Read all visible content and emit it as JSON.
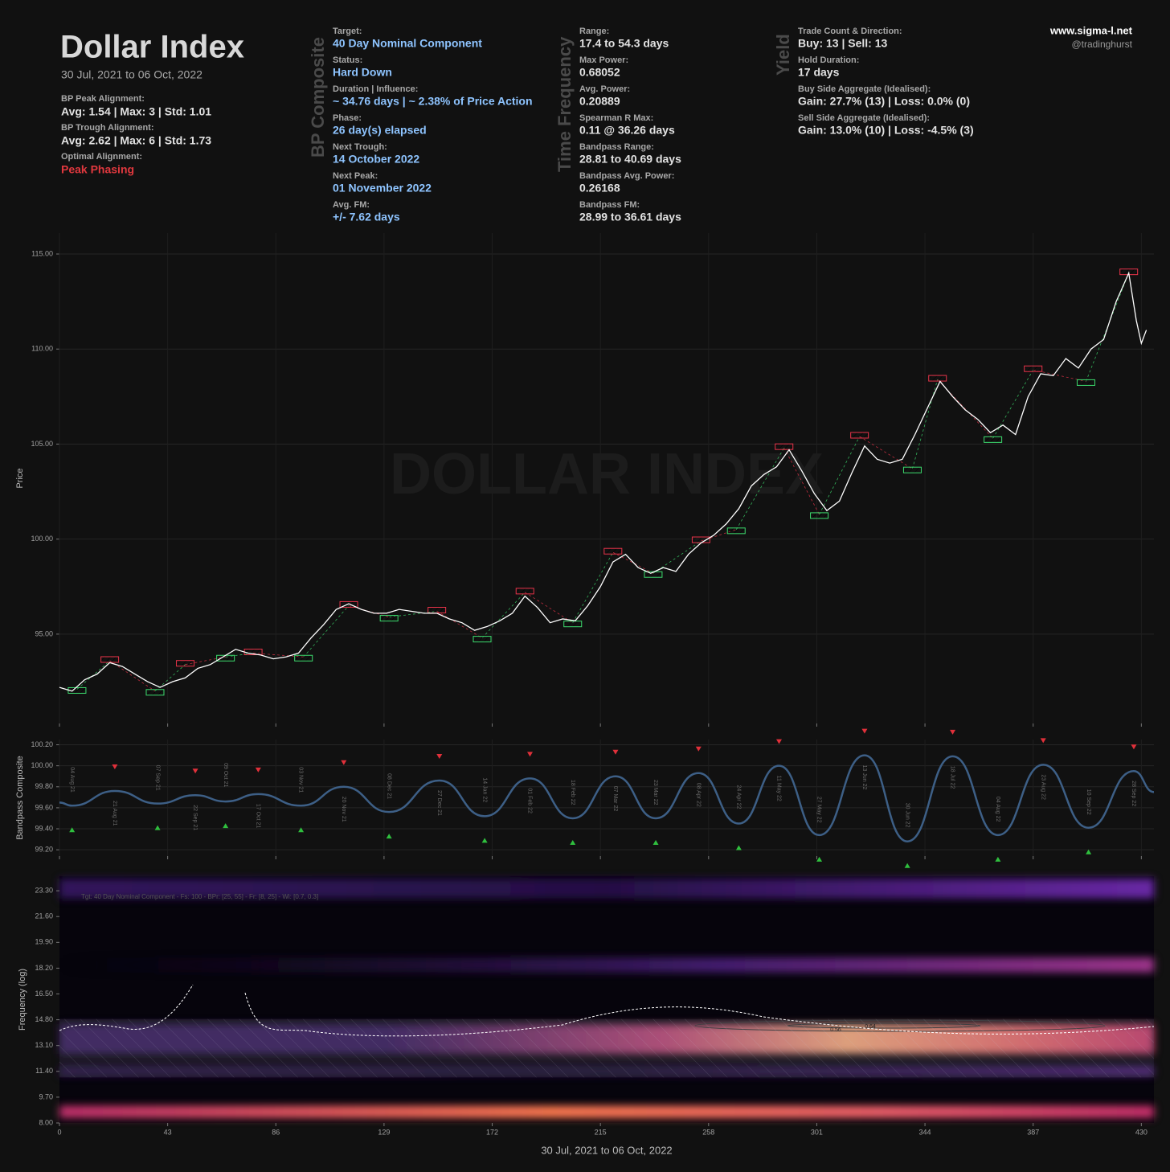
{
  "header": {
    "title": "Dollar Index",
    "subtitle": "30 Jul, 2021 to 06 Oct, 2022",
    "alignment": [
      {
        "label": "BP Peak Alignment:",
        "value": "Avg: 1.54 | Max: 3 | Std: 1.01"
      },
      {
        "label": "BP Trough Alignment:",
        "value": "Avg: 2.62 | Max: 6 | Std: 1.73"
      },
      {
        "label": "Optimal Alignment:",
        "value": "Peak Phasing"
      }
    ],
    "sections": [
      {
        "heading": "BP Composite",
        "items": [
          {
            "label": "Target:",
            "value": "40 Day Nominal Component"
          },
          {
            "label": "Status:",
            "value": "Hard Down"
          },
          {
            "label": "Duration | Influence:",
            "value": "~ 34.76 days | ~ 2.38% of Price Action"
          },
          {
            "label": "Phase:",
            "value": "26 day(s) elapsed"
          },
          {
            "label": "Next Trough:",
            "value": "14 October 2022"
          },
          {
            "label": "Next Peak:",
            "value": "01 November 2022"
          },
          {
            "label": "Avg. FM:",
            "value": "+/- 7.62 days"
          }
        ]
      },
      {
        "heading": "Time Frequency",
        "items": [
          {
            "label": "Range:",
            "value": "17.4 to 54.3 days"
          },
          {
            "label": "Max Power:",
            "value": "0.68052"
          },
          {
            "label": "Avg. Power:",
            "value": "0.20889"
          },
          {
            "label": "Spearman R Max:",
            "value": "0.11 @ 36.26 days"
          },
          {
            "label": "Bandpass Range:",
            "value": "28.81 to 40.69 days"
          },
          {
            "label": "Bandpass Avg. Power:",
            "value": "0.26168"
          },
          {
            "label": "Bandpass FM:",
            "value": "28.99 to 36.61 days"
          }
        ]
      },
      {
        "heading": "Yield",
        "items": [
          {
            "label": "Trade Count & Direction:",
            "value": "Buy: 13 | Sell: 13"
          },
          {
            "label": "Hold Duration:",
            "value": "17 days"
          },
          {
            "label": "Buy Side Aggregate (Idealised):",
            "value": "Gain: 27.7% (13) | Loss: 0.0% (0)"
          },
          {
            "label": "Sell Side Aggregate (Idealised):",
            "value": "Gain: 13.0% (10) | Loss: -4.5% (3)"
          }
        ]
      }
    ],
    "site": "www.sigma-l.net",
    "handle": "@tradinghurst"
  },
  "chart_data": [
    {
      "type": "line",
      "ylabel": "Price",
      "watermark": "DOLLAR INDEX",
      "color": "#ffffff",
      "x": [
        0,
        5,
        10,
        15,
        20,
        25,
        30,
        35,
        40,
        45,
        50,
        55,
        60,
        65,
        70,
        75,
        80,
        85,
        90,
        95,
        100,
        105,
        110,
        115,
        120,
        125,
        130,
        135,
        140,
        145,
        150,
        155,
        160,
        165,
        170,
        175,
        180,
        185,
        190,
        195,
        200,
        205,
        210,
        215,
        220,
        225,
        230,
        235,
        240,
        245,
        250,
        255,
        260,
        265,
        270,
        275,
        280,
        285,
        290,
        295,
        300,
        305,
        310,
        315,
        320,
        325,
        330,
        335,
        340,
        345,
        350,
        355,
        360,
        365,
        370,
        375,
        380,
        385,
        390,
        395,
        400,
        405,
        410,
        415,
        420,
        425,
        428,
        430,
        432
      ],
      "values": [
        92.2,
        92.0,
        92.6,
        92.9,
        93.5,
        93.3,
        92.9,
        92.5,
        92.2,
        92.5,
        92.7,
        93.2,
        93.4,
        93.8,
        94.2,
        94.0,
        93.9,
        93.7,
        93.8,
        94.0,
        94.8,
        95.5,
        96.3,
        96.6,
        96.3,
        96.1,
        96.1,
        96.3,
        96.2,
        96.1,
        96.1,
        95.8,
        95.6,
        95.2,
        95.4,
        95.7,
        96.1,
        97.0,
        96.4,
        95.6,
        95.8,
        95.7,
        96.5,
        97.5,
        98.8,
        99.2,
        98.5,
        98.2,
        98.5,
        98.3,
        99.2,
        99.8,
        100.2,
        100.8,
        101.6,
        102.8,
        103.4,
        103.8,
        104.7,
        103.6,
        102.4,
        101.5,
        102.0,
        103.5,
        104.9,
        104.2,
        104.0,
        104.2,
        105.5,
        106.9,
        108.3,
        107.5,
        106.8,
        106.3,
        105.6,
        106.0,
        105.5,
        107.5,
        108.7,
        108.6,
        109.5,
        109.0,
        110.0,
        110.5,
        112.5,
        114.0,
        111.5,
        110.3,
        111.0
      ],
      "peaks": {
        "color": "#e8344a",
        "x": [
          20,
          50,
          77,
          115,
          150,
          185,
          220,
          255,
          288,
          318,
          349,
          387,
          425
        ],
        "values": [
          93.6,
          93.4,
          94.0,
          96.5,
          96.2,
          97.2,
          99.3,
          99.9,
          104.8,
          105.4,
          108.4,
          108.9,
          114.0
        ]
      },
      "troughs": {
        "color": "#3ddc6e",
        "x": [
          7,
          38,
          66,
          97,
          131,
          168,
          204,
          236,
          269,
          302,
          339,
          371,
          408
        ],
        "values": [
          92.1,
          92.0,
          93.8,
          93.8,
          95.9,
          94.8,
          95.6,
          98.2,
          100.5,
          101.3,
          103.7,
          105.3,
          108.3
        ]
      },
      "xlim": [
        0,
        435
      ],
      "ylim": [
        90.3,
        116.1
      ],
      "yticks": [
        {
          "value": 95,
          "label": "95.00"
        },
        {
          "value": 100,
          "label": "100.00"
        },
        {
          "value": 105,
          "label": "105.00"
        },
        {
          "value": 110,
          "label": "110.00"
        },
        {
          "value": 115,
          "label": "115.00"
        }
      ],
      "grid": true
    },
    {
      "type": "line",
      "interpolation": "smooth",
      "ylabel": "Bandpass Composite",
      "color": "#3d5f86",
      "peak_color": "#e0303a",
      "trough_color": "#2fbf3e",
      "x": [
        0,
        5,
        22,
        39,
        54,
        66,
        79,
        96,
        113,
        131,
        151,
        169,
        187,
        204,
        221,
        237,
        254,
        270,
        286,
        302,
        320,
        337,
        355,
        373,
        391,
        409,
        427,
        435
      ],
      "values": [
        99.65,
        99.62,
        99.76,
        99.64,
        99.72,
        99.66,
        99.73,
        99.62,
        99.8,
        99.56,
        99.86,
        99.52,
        99.88,
        99.5,
        99.9,
        99.5,
        99.93,
        99.45,
        100.0,
        99.34,
        100.1,
        99.28,
        100.09,
        99.34,
        100.01,
        99.41,
        99.95,
        99.75
      ],
      "point_labels": [
        null,
        "04 Aug 21",
        "21 Aug 21",
        "07 Sep 21",
        "22 Sep 21",
        "09 Oct 21",
        "17 Oct 21",
        "03 Nov 21",
        "20 Nov 21",
        "08 Dec 21",
        "27 Dec 21",
        "14 Jan 22",
        "01 Feb 22",
        "18 Feb 22",
        "07 Mar 22",
        "23 Mar 22",
        "08 Apr 22",
        "24 Apr 22",
        "11 May 22",
        "27 May 22",
        "13 Jun 22",
        "30 Jun 22",
        "18 Jul 22",
        "04 Aug 22",
        "23 Aug 22",
        "10 Sep 22",
        "28 Sep 22",
        null
      ],
      "xlim": [
        0,
        435
      ],
      "ylim": [
        99.14,
        100.25
      ],
      "yticks": [
        {
          "value": 99.2,
          "label": "99.20"
        },
        {
          "value": 99.4,
          "label": "99.40"
        },
        {
          "value": 99.6,
          "label": "99.60"
        },
        {
          "value": 99.8,
          "label": "99.80"
        },
        {
          "value": 100,
          "label": "100.00"
        },
        {
          "value": 100.2,
          "label": "100.20"
        }
      ],
      "grid": true
    },
    {
      "type": "heatmap",
      "ylabel": "Frequency (log)",
      "xlabel": "30 Jul, 2021 to 06 Oct, 2022",
      "annotation": "Tgt: 40 Day Nominal Component - Fs: 100 - BPr: [25, 55] - Fr: [8, 25] - Wi: [0.7, 0.3]",
      "contour_labels": [
        "0.56",
        "0.64"
      ],
      "highlight_range": [
        11.0,
        14.85
      ],
      "xlim": [
        0,
        435
      ],
      "ylim": [
        8,
        24.26
      ],
      "xticks": [
        0,
        43,
        86,
        129,
        172,
        215,
        258,
        301,
        344,
        387,
        430
      ],
      "yticks": [
        {
          "value": 8,
          "label": "8.00"
        },
        {
          "value": 9.7,
          "label": "9.70"
        },
        {
          "value": 11.4,
          "label": "11.40"
        },
        {
          "value": 13.1,
          "label": "13.10"
        },
        {
          "value": 14.8,
          "label": "14.80"
        },
        {
          "value": 16.5,
          "label": "16.50"
        },
        {
          "value": 18.2,
          "label": "18.20"
        },
        {
          "value": 19.9,
          "label": "19.90"
        },
        {
          "value": 21.6,
          "label": "21.60"
        },
        {
          "value": 23.3,
          "label": "23.30"
        }
      ]
    }
  ]
}
